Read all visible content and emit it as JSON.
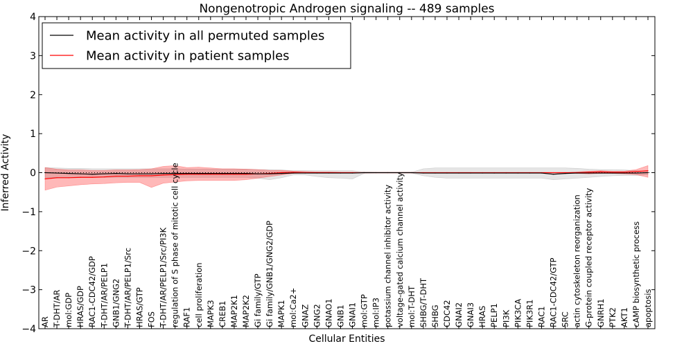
{
  "chart_data": {
    "type": "line",
    "title": "Nongenotropic Androgen signaling -- 489 samples",
    "xlabel": "Cellular Entities",
    "ylabel": "Inferred Activity",
    "ylim": [
      -4,
      4
    ],
    "yticks": [
      -4,
      -3,
      -2,
      -1,
      0,
      1,
      2,
      3,
      4
    ],
    "ytick_labels": [
      "−4",
      "−3",
      "−2",
      "−1",
      "0",
      "1",
      "2",
      "3",
      "4"
    ],
    "grid": false,
    "legend_position": "top-left",
    "categories": [
      "AR",
      "T-DHT/AR",
      "mol:GDP",
      "HRAS/GDP",
      "RAC1-CDC42/GDP",
      "T-DHT/AR/PELP1",
      "GNB1/GNG2",
      "T-DHT/AR/PELP1/Src",
      "HRAS/GTP",
      "FOS",
      "T-DHT/AR/PELP1/Src/PI3K",
      "regulation of S phase of mitotic cell cycle",
      "RAF1",
      "cell proliferation",
      "MAPK3",
      "CREB1",
      "MAP2K1",
      "MAP2K2",
      "Gi family/GTP",
      "Gi family/GNB1/GNG2/GDP",
      "MAPK1",
      "mol:Ca2+",
      "GNAZ",
      "GNG2",
      "GNAO1",
      "GNB1",
      "GNAI1",
      "mol:GTP",
      "mol:IP3",
      "potassium channel inhibitor activity",
      "voltage-gated calcium channel activity",
      "mol:T-DHT",
      "SHBG/T-DHT",
      "SHBG",
      "CDC42",
      "GNAI2",
      "GNAI3",
      "HRAS",
      "PELP1",
      "PI3K",
      "PIK3CA",
      "PIK3R1",
      "RAC1",
      "RAC1-CDC42/GTP",
      "SRC",
      "actin cytoskeleton reorganization",
      "G-protein coupled receptor activity",
      "GNRH1",
      "PTK2",
      "AKT1",
      "cAMP biosynthetic process",
      "apoptosis"
    ],
    "series": [
      {
        "name": "Mean activity in all permuted samples",
        "color": "#000000",
        "values": [
          0.0,
          -0.01,
          -0.02,
          -0.03,
          -0.04,
          -0.03,
          -0.02,
          -0.03,
          -0.03,
          -0.03,
          -0.02,
          -0.02,
          -0.02,
          -0.02,
          -0.02,
          -0.02,
          -0.02,
          -0.02,
          -0.03,
          -0.03,
          -0.02,
          -0.01,
          -0.01,
          -0.01,
          -0.01,
          -0.01,
          -0.01,
          0.0,
          0.0,
          0.0,
          0.0,
          0.0,
          -0.01,
          -0.01,
          -0.01,
          -0.01,
          -0.01,
          -0.01,
          -0.01,
          -0.01,
          -0.01,
          -0.01,
          -0.01,
          -0.04,
          -0.02,
          -0.01,
          -0.01,
          -0.01,
          -0.01,
          -0.01,
          -0.01,
          0.0
        ],
        "upper": [
          0.13,
          0.12,
          0.11,
          0.11,
          0.1,
          0.1,
          0.1,
          0.1,
          0.1,
          0.1,
          0.1,
          0.1,
          0.09,
          0.09,
          0.09,
          0.09,
          0.09,
          0.09,
          0.08,
          0.08,
          0.07,
          0.05,
          0.05,
          0.05,
          0.05,
          0.05,
          0.05,
          0.02,
          0.01,
          0.01,
          0.01,
          0.01,
          0.1,
          0.12,
          0.12,
          0.12,
          0.12,
          0.12,
          0.12,
          0.12,
          0.12,
          0.12,
          0.12,
          0.12,
          0.12,
          0.11,
          0.09,
          0.08,
          0.08,
          0.07,
          0.05,
          0.03
        ],
        "lower": [
          -0.13,
          -0.12,
          -0.12,
          -0.12,
          -0.12,
          -0.12,
          -0.12,
          -0.12,
          -0.12,
          -0.12,
          -0.12,
          -0.12,
          -0.12,
          -0.12,
          -0.12,
          -0.12,
          -0.12,
          -0.12,
          -0.14,
          -0.18,
          -0.13,
          -0.06,
          -0.06,
          -0.1,
          -0.13,
          -0.14,
          -0.16,
          -0.02,
          -0.01,
          -0.01,
          -0.01,
          -0.01,
          -0.08,
          -0.12,
          -0.14,
          -0.14,
          -0.14,
          -0.14,
          -0.14,
          -0.14,
          -0.14,
          -0.14,
          -0.14,
          -0.18,
          -0.16,
          -0.14,
          -0.12,
          -0.1,
          -0.08,
          -0.07,
          -0.07,
          -0.05
        ]
      },
      {
        "name": "Mean activity in patient samples",
        "color": "#ff0000",
        "values": [
          -0.16,
          -0.13,
          -0.13,
          -0.12,
          -0.12,
          -0.11,
          -0.09,
          -0.09,
          -0.08,
          -0.08,
          -0.06,
          -0.05,
          -0.04,
          -0.04,
          -0.04,
          -0.04,
          -0.04,
          -0.04,
          -0.03,
          -0.02,
          0.0,
          0.01,
          0.0,
          0.0,
          0.0,
          0.0,
          0.0,
          0.0,
          0.0,
          0.0,
          0.0,
          0.0,
          0.0,
          0.0,
          0.0,
          0.0,
          0.0,
          0.0,
          0.0,
          0.0,
          0.0,
          0.0,
          0.0,
          0.0,
          0.0,
          0.0,
          0.01,
          0.02,
          0.01,
          0.01,
          0.03,
          0.05
        ],
        "upper": [
          0.13,
          0.09,
          0.07,
          0.07,
          0.06,
          0.06,
          0.07,
          0.07,
          0.08,
          0.1,
          0.16,
          0.18,
          0.13,
          0.14,
          0.12,
          0.1,
          0.1,
          0.09,
          0.08,
          0.06,
          0.06,
          0.04,
          0.03,
          0.02,
          0.02,
          0.01,
          0.01,
          0.0,
          0.0,
          0.0,
          0.0,
          0.0,
          0.0,
          0.0,
          0.0,
          0.0,
          0.0,
          0.0,
          0.0,
          0.0,
          0.0,
          0.0,
          0.0,
          0.0,
          0.0,
          0.02,
          0.04,
          0.05,
          0.04,
          0.04,
          0.08,
          0.18
        ],
        "lower": [
          -0.45,
          -0.37,
          -0.34,
          -0.31,
          -0.29,
          -0.28,
          -0.26,
          -0.25,
          -0.25,
          -0.38,
          -0.27,
          -0.24,
          -0.21,
          -0.2,
          -0.2,
          -0.2,
          -0.2,
          -0.18,
          -0.14,
          -0.1,
          -0.06,
          -0.02,
          -0.01,
          -0.01,
          -0.01,
          -0.01,
          -0.01,
          0.0,
          0.0,
          0.0,
          0.0,
          0.0,
          0.0,
          0.0,
          0.0,
          0.0,
          0.0,
          0.0,
          0.0,
          0.0,
          0.0,
          0.0,
          0.0,
          0.0,
          0.0,
          -0.02,
          -0.03,
          -0.02,
          -0.02,
          -0.03,
          -0.05,
          -0.12
        ]
      }
    ],
    "reference_line": {
      "y": 0,
      "style": "dotted",
      "color": "#000000"
    }
  }
}
